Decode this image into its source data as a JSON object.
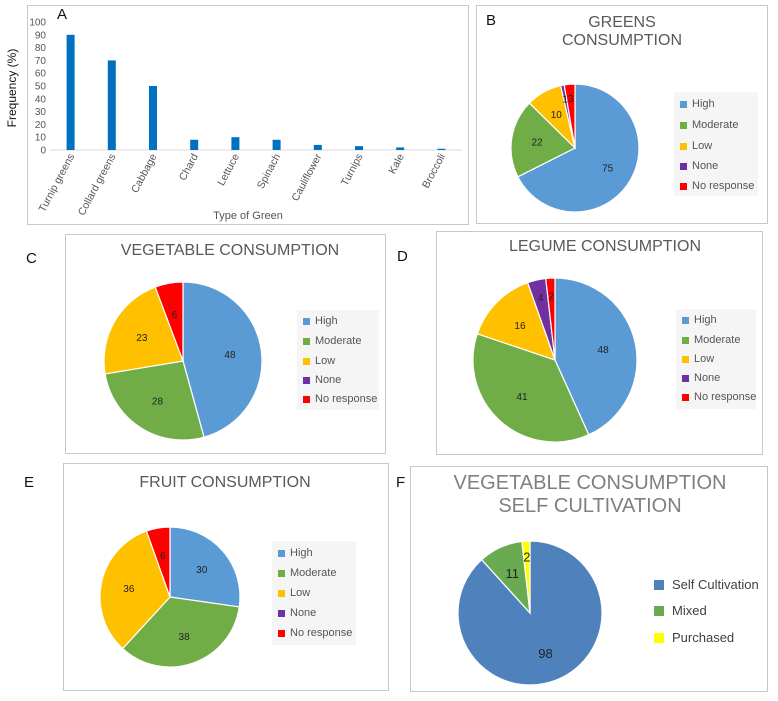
{
  "legend_categories": [
    "High",
    "Moderate",
    "Low",
    "None",
    "No response"
  ],
  "colors": {
    "High": "#5b9bd5",
    "Moderate": "#70ad47",
    "Low": "#ffc000",
    "None": "#7030a0",
    "No response": "#ff0000",
    "bar": "#0070c0",
    "Self Cultivation": "#4f81bd",
    "Mixed": "#6aaa50",
    "Purchased": "#ffff00"
  },
  "chart_data": [
    {
      "panel": "A",
      "type": "bar",
      "title": "",
      "categories": [
        "Turnip greens",
        "Collard greens",
        "Cabbage",
        "Chard",
        "Lettuce",
        "Spinach",
        "Cauliflower",
        "Turnips",
        "Kale",
        "Broccoli"
      ],
      "values": [
        90,
        70,
        50,
        8,
        10,
        8,
        4,
        3,
        2,
        1
      ],
      "xlabel": "Type of Green",
      "ylabel": "Frequency (%)",
      "ylim": [
        0,
        100
      ],
      "yticks": [
        0,
        10,
        20,
        30,
        40,
        50,
        60,
        70,
        80,
        90,
        100
      ],
      "grid": false
    },
    {
      "panel": "B",
      "type": "pie",
      "title": "GREENS CONSUMPTION",
      "title_lines": [
        "GREENS",
        "CONSUMPTION"
      ],
      "labels": [
        "High",
        "Moderate",
        "Low",
        "None",
        "No response"
      ],
      "values": [
        75,
        22,
        10,
        1,
        3
      ]
    },
    {
      "panel": "C",
      "type": "pie",
      "title": "VEGETABLE CONSUMPTION",
      "title_lines": [
        "VEGETABLE CONSUMPTION"
      ],
      "labels": [
        "High",
        "Moderate",
        "Low",
        "None",
        "No response"
      ],
      "values": [
        48,
        28,
        23,
        0,
        6
      ],
      "data_labels": [
        "48",
        "28",
        "23",
        "",
        "6"
      ]
    },
    {
      "panel": "D",
      "type": "pie",
      "title": "LEGUME CONSUMPTION",
      "title_lines": [
        "LEGUME CONSUMPTION"
      ],
      "labels": [
        "High",
        "Moderate",
        "Low",
        "None",
        "No response"
      ],
      "values": [
        48,
        41,
        16,
        4,
        2
      ]
    },
    {
      "panel": "E",
      "type": "pie",
      "title": "FRUIT CONSUMPTION",
      "title_lines": [
        "FRUIT CONSUMPTION"
      ],
      "labels": [
        "High",
        "Moderate",
        "Low",
        "None",
        "No response"
      ],
      "values": [
        30,
        38,
        36,
        0,
        6
      ],
      "data_labels": [
        "30",
        "38",
        "36",
        "",
        "6"
      ]
    },
    {
      "panel": "F",
      "type": "pie",
      "title": "VEGETABLE CONSUMPTION SELF CULTIVATION",
      "title_lines": [
        "VEGETABLE CONSUMPTION",
        "SELF CULTIVATION"
      ],
      "labels": [
        "Self Cultivation",
        "Mixed",
        "Purchased"
      ],
      "values": [
        98,
        11,
        2
      ]
    }
  ]
}
